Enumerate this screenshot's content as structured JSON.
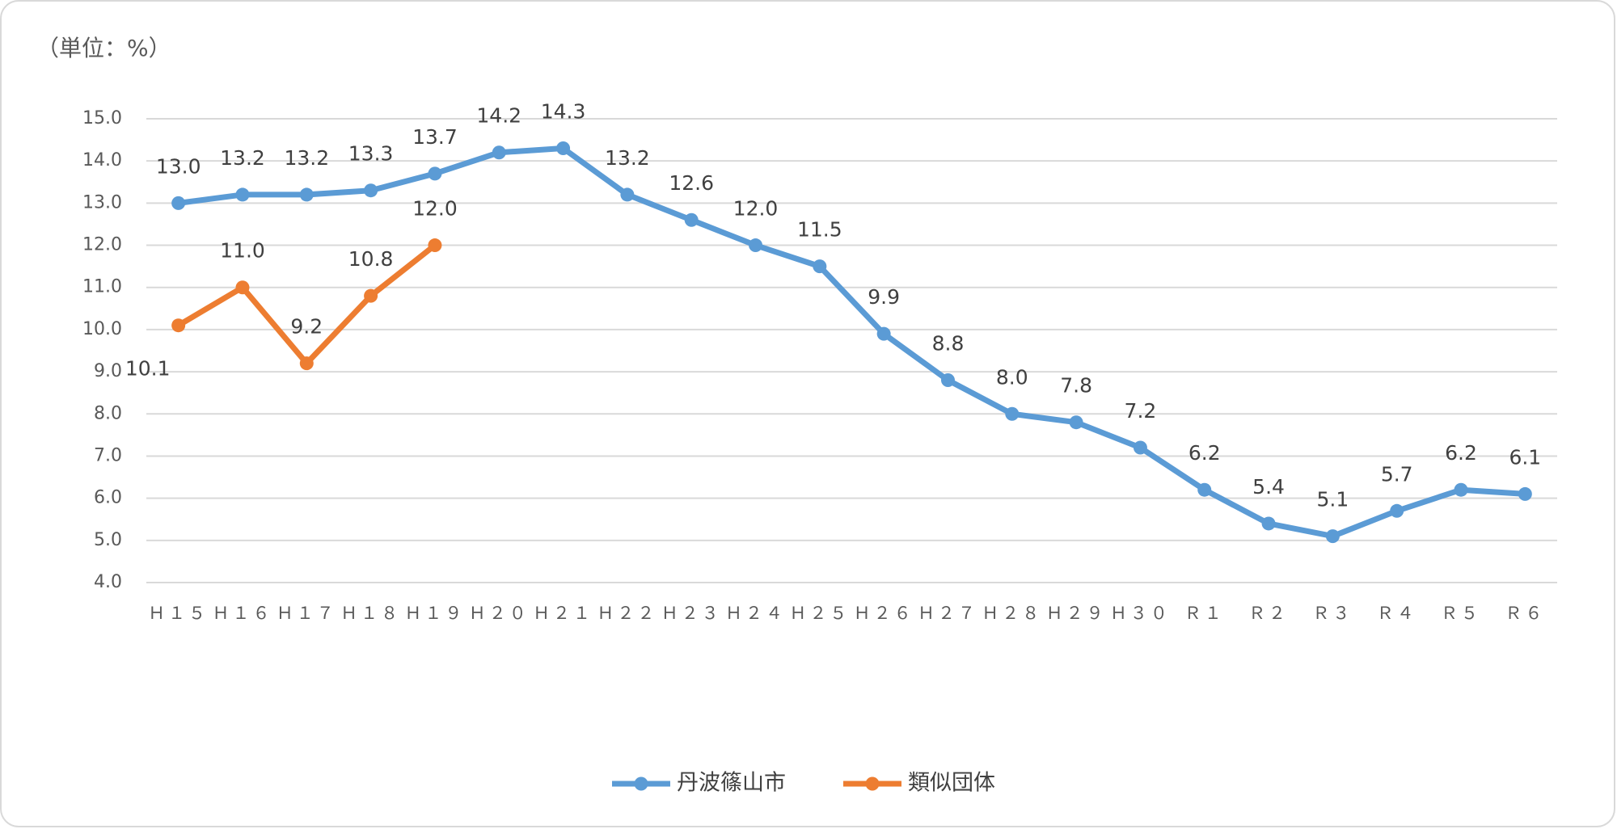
{
  "chart_data": {
    "type": "line",
    "subtitle": "（単位：%）",
    "categories": [
      "Ｈ１５",
      "Ｈ１６",
      "Ｈ１７",
      "Ｈ１８",
      "Ｈ１９",
      "Ｈ２０",
      "Ｈ２１",
      "Ｈ２２",
      "Ｈ２３",
      "Ｈ２４",
      "Ｈ２５",
      "Ｈ２６",
      "Ｈ２７",
      "Ｈ２８",
      "Ｈ２９",
      "Ｈ３０",
      "Ｒ１",
      "Ｒ２",
      "Ｒ３",
      "Ｒ４",
      "Ｒ５",
      "Ｒ６"
    ],
    "series": [
      {
        "name": "丹波篠山市",
        "color": "#5b9bd5",
        "values": [
          13.0,
          13.2,
          13.2,
          13.3,
          13.7,
          14.2,
          14.3,
          13.2,
          12.6,
          12.0,
          11.5,
          9.9,
          8.8,
          8.0,
          7.8,
          7.2,
          6.2,
          5.4,
          5.1,
          5.7,
          6.2,
          6.1
        ],
        "value_labels": [
          "13.0",
          "13.2",
          "13.2",
          "13.3",
          "13.7",
          "14.2",
          "14.3",
          "13.2",
          "12.6",
          "12.0",
          "11.5",
          "9.9",
          "8.8",
          "8.0",
          "7.8",
          "7.2",
          "6.2",
          "5.4",
          "5.1",
          "5.7",
          "6.2",
          "6.1"
        ]
      },
      {
        "name": "類似団体",
        "color": "#ed7d31",
        "values": [
          10.1,
          11.0,
          9.2,
          10.8,
          12.0,
          null,
          null,
          null,
          null,
          null,
          null,
          null,
          null,
          null,
          null,
          null,
          null,
          null,
          null,
          null,
          null,
          null
        ],
        "value_labels": [
          "10.1",
          "11.0",
          "9.2",
          "10.8",
          "12.0",
          null,
          null,
          null,
          null,
          null,
          null,
          null,
          null,
          null,
          null,
          null,
          null,
          null,
          null,
          null,
          null,
          null
        ]
      }
    ],
    "ylim": [
      4,
      15
    ],
    "yticks": [
      {
        "value": 4,
        "label": "4.0"
      },
      {
        "value": 5,
        "label": "5.0"
      },
      {
        "value": 6,
        "label": "6.0"
      },
      {
        "value": 7,
        "label": "7.0"
      },
      {
        "value": 8,
        "label": "8.0"
      },
      {
        "value": 9,
        "label": "9.0"
      },
      {
        "value": 10,
        "label": "10.0"
      },
      {
        "value": 11,
        "label": "11.0"
      },
      {
        "value": 12,
        "label": "12.0"
      },
      {
        "value": 13,
        "label": "13.0"
      },
      {
        "value": 14,
        "label": "14.0"
      },
      {
        "value": 15,
        "label": "15.0"
      }
    ],
    "grid": true,
    "legend": "bottom"
  }
}
